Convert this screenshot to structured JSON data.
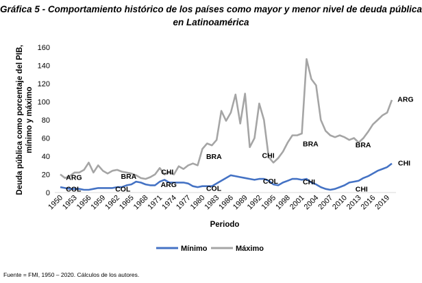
{
  "chart_data": {
    "type": "line",
    "title_line1": "Gráfica 5 - Comportamiento histórico de los países como mayor y menor nivel de deuda pública",
    "title_line2": "en Latinoamérica",
    "xlabel": "Periodo",
    "ylabel_line1": "Deuda pública como porcentaje del PIB,",
    "ylabel_line2": "mínimo y máximo",
    "ylim": [
      0,
      160
    ],
    "yticks": [
      0,
      20,
      40,
      60,
      80,
      100,
      120,
      140,
      160
    ],
    "xticks": [
      "1950",
      "1953",
      "1956",
      "1959",
      "1962",
      "1965",
      "1968",
      "1971",
      "1974",
      "1977",
      "1980",
      "1983",
      "1986",
      "1989",
      "1992",
      "1995",
      "1998",
      "2001",
      "2004",
      "2007",
      "2010",
      "2013",
      "2016",
      "2019"
    ],
    "x": [
      1950,
      1951,
      1952,
      1953,
      1954,
      1955,
      1956,
      1957,
      1958,
      1959,
      1960,
      1961,
      1962,
      1963,
      1964,
      1965,
      1966,
      1967,
      1968,
      1969,
      1970,
      1971,
      1972,
      1973,
      1974,
      1975,
      1976,
      1977,
      1978,
      1979,
      1980,
      1981,
      1982,
      1983,
      1984,
      1985,
      1986,
      1987,
      1988,
      1989,
      1990,
      1991,
      1992,
      1993,
      1994,
      1995,
      1996,
      1997,
      1998,
      1999,
      2000,
      2001,
      2002,
      2003,
      2004,
      2005,
      2006,
      2007,
      2008,
      2009,
      2010,
      2011,
      2012,
      2013,
      2014,
      2015,
      2016,
      2017,
      2018,
      2019,
      2020
    ],
    "series": [
      {
        "name": "Mínimo",
        "color": "#4472C4",
        "values": [
          6,
          5,
          4,
          4,
          4,
          3,
          3,
          4,
          5,
          5,
          5,
          5,
          6,
          6,
          8,
          9,
          12,
          11,
          9,
          8,
          8,
          12,
          14,
          11,
          11,
          11,
          11,
          10,
          7,
          6,
          7,
          7,
          7,
          10,
          13,
          16,
          19,
          18,
          17,
          16,
          15,
          14,
          15,
          15,
          13,
          9,
          8,
          11,
          13,
          15,
          15,
          14,
          15,
          11,
          9,
          6,
          4,
          3,
          4,
          6,
          8,
          11,
          12,
          13,
          16,
          18,
          21,
          24,
          26,
          28,
          32
        ]
      },
      {
        "name": "Máximo",
        "color": "#A5A5A5",
        "values": [
          20,
          16,
          18,
          22,
          22,
          25,
          33,
          22,
          30,
          24,
          21,
          24,
          25,
          23,
          22,
          21,
          19,
          16,
          15,
          17,
          20,
          27,
          20,
          22,
          20,
          29,
          26,
          30,
          32,
          30,
          48,
          54,
          52,
          58,
          90,
          79,
          88,
          108,
          76,
          109,
          50,
          60,
          98,
          80,
          39,
          33,
          38,
          45,
          55,
          63,
          63,
          65,
          147,
          125,
          118,
          80,
          68,
          63,
          61,
          63,
          61,
          58,
          60,
          55,
          60,
          67,
          75,
          80,
          85,
          88,
          102
        ]
      }
    ],
    "annotations": [
      {
        "text": "ARG",
        "x": 1951.2,
        "y": 17
      },
      {
        "text": "COL",
        "x": 1951.2,
        "y": 4
      },
      {
        "text": "COL",
        "x": 1961.6,
        "y": 4
      },
      {
        "text": "BRA",
        "x": 1962.8,
        "y": 18
      },
      {
        "text": "CHI",
        "x": 1971.3,
        "y": 23
      },
      {
        "text": "ARG",
        "x": 1971.2,
        "y": 9
      },
      {
        "text": "BRA",
        "x": 1980.8,
        "y": 40
      },
      {
        "text": "COL",
        "x": 1980.8,
        "y": 5
      },
      {
        "text": "CHI",
        "x": 1992.6,
        "y": 41
      },
      {
        "text": "COL",
        "x": 1992.8,
        "y": 13
      },
      {
        "text": "BRA",
        "x": 2001.2,
        "y": 54
      },
      {
        "text": "CHI",
        "x": 2001.2,
        "y": 12
      },
      {
        "text": "BRA",
        "x": 2012.3,
        "y": 53
      },
      {
        "text": "CHI",
        "x": 2012.3,
        "y": 4
      },
      {
        "text": "ARG",
        "x": 2021.2,
        "y": 103
      },
      {
        "text": "CHI",
        "x": 2021.3,
        "y": 33
      }
    ],
    "grid": false,
    "legend": "bottom"
  },
  "source_note": "Fuente = FMI, 1950 – 2020. Cálculos de los autores."
}
